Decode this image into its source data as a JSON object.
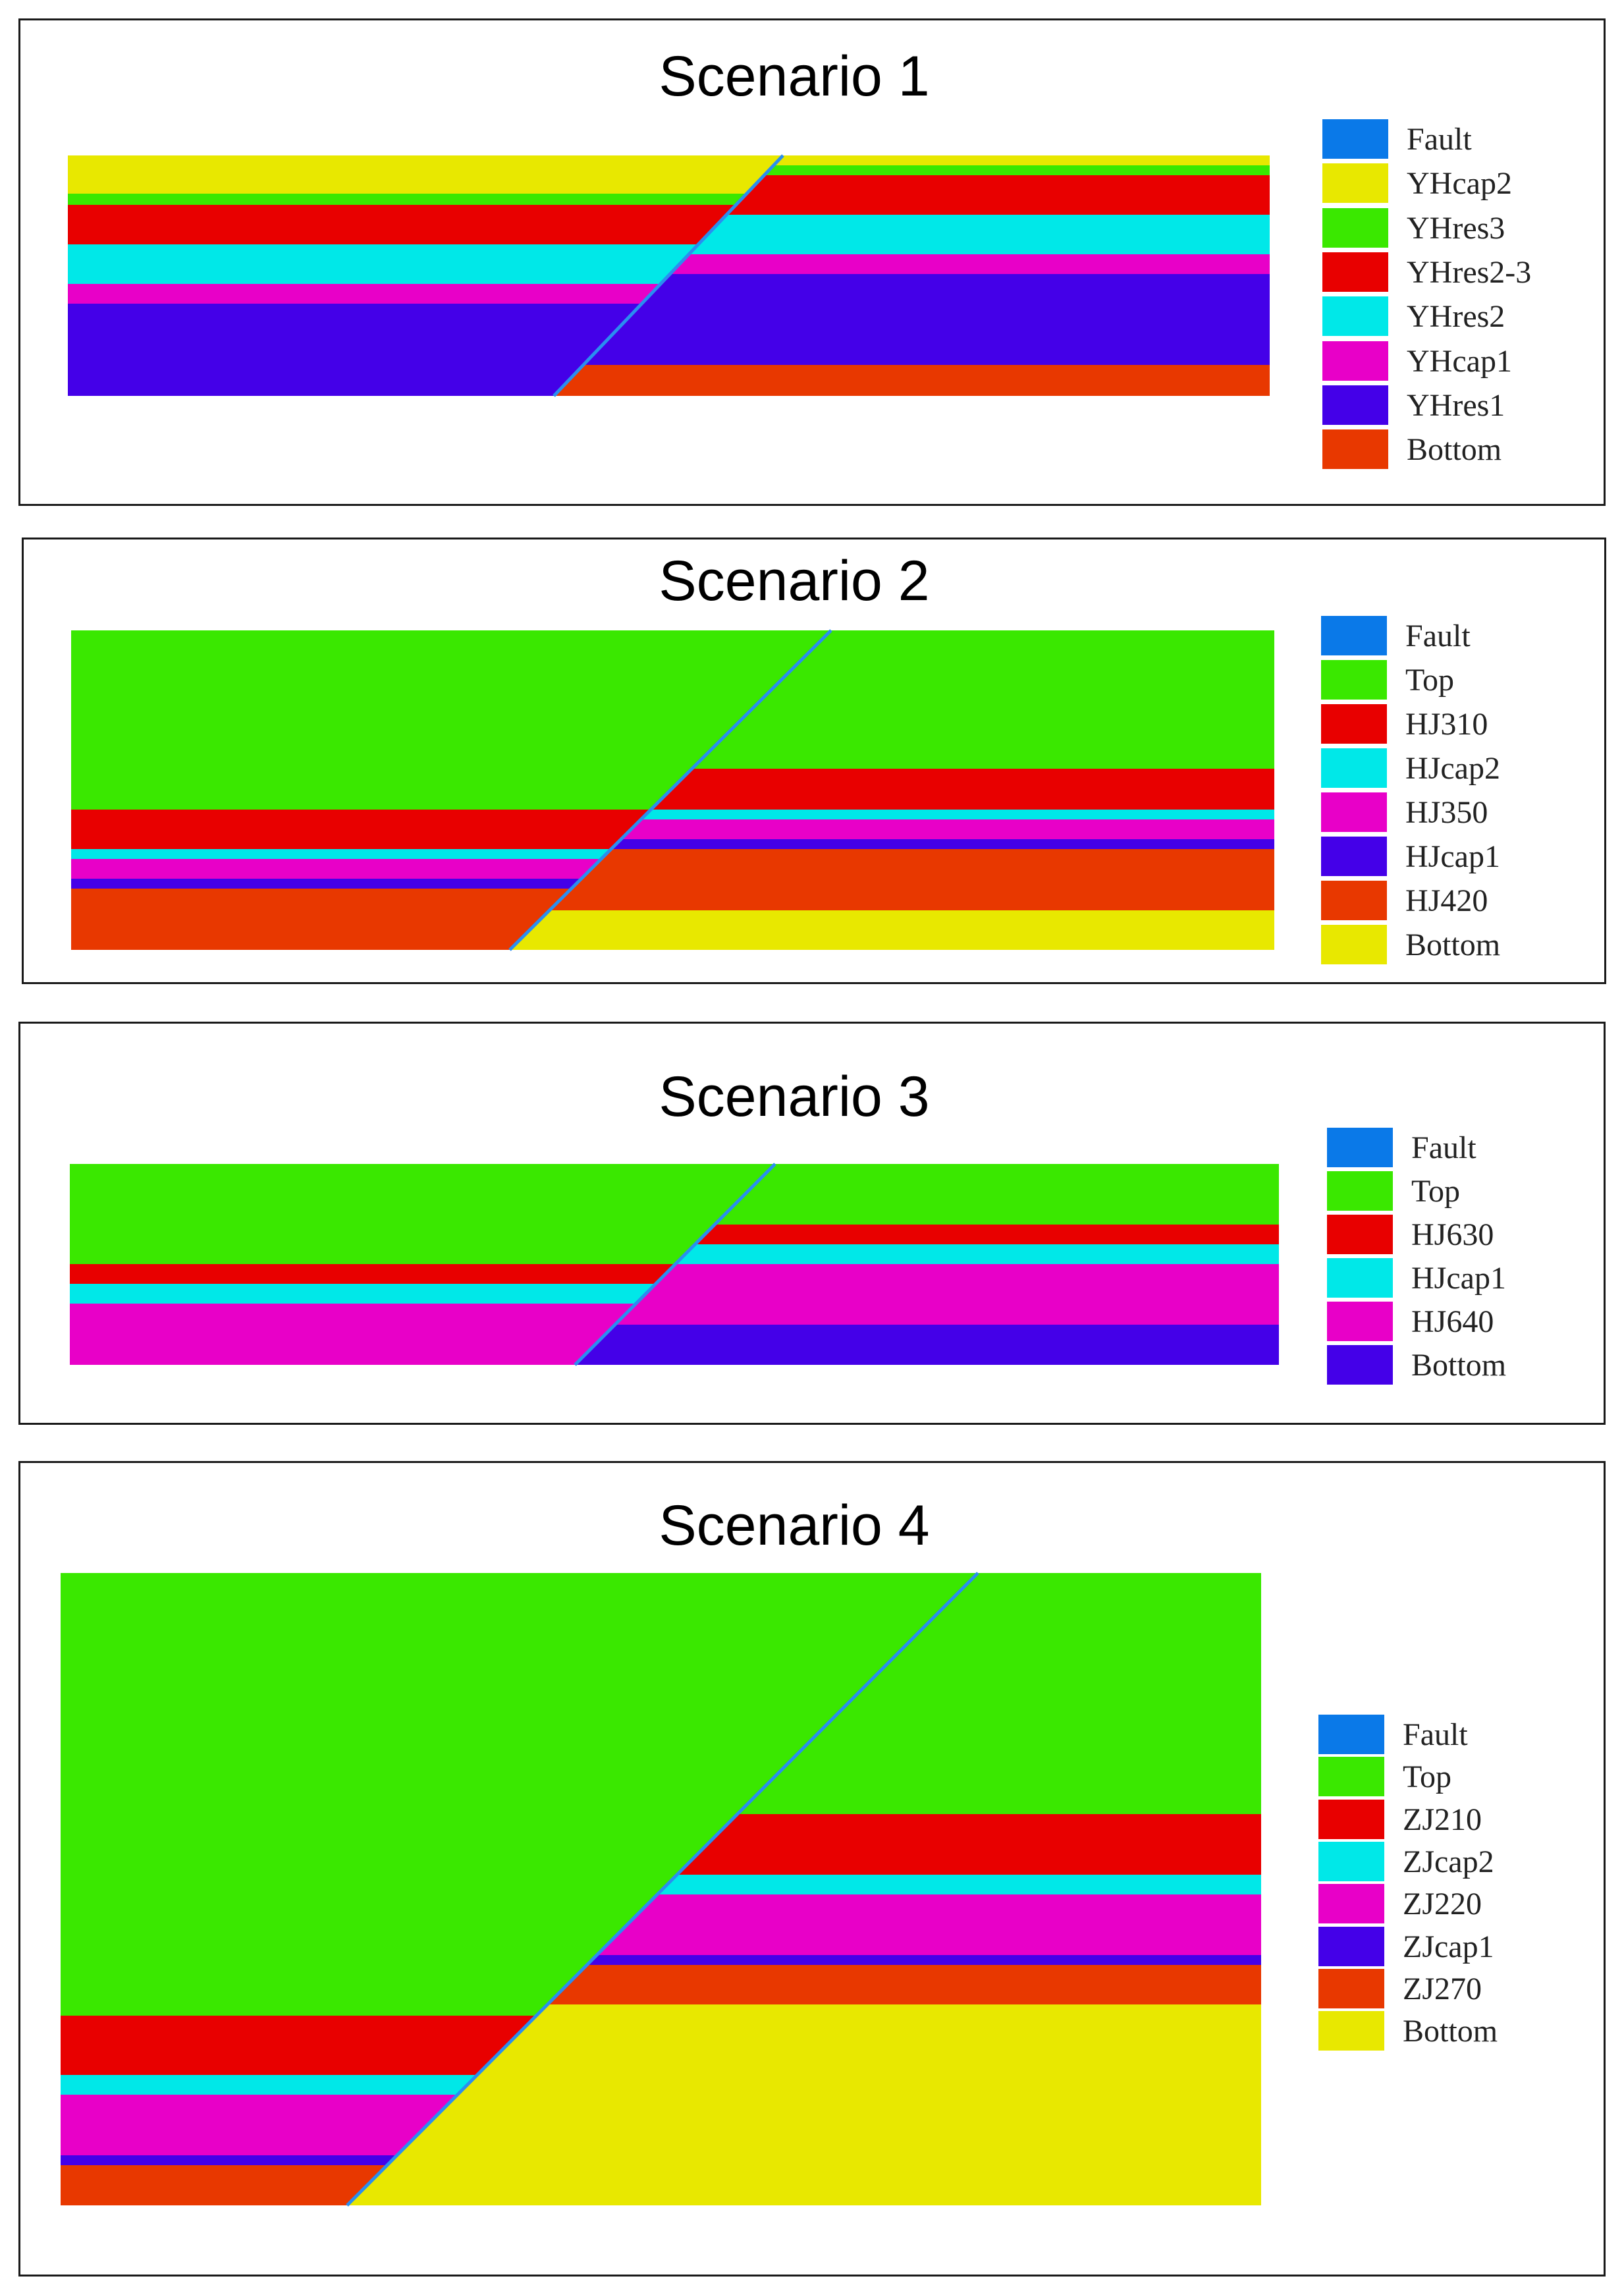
{
  "colors": {
    "fault": "#0a79e8",
    "fault_line": "#2a8ef0",
    "yellow": "#e8e800",
    "green": "#3ae800",
    "red": "#e80000",
    "cyan": "#00e8e8",
    "magenta": "#e800c8",
    "purple": "#4400e8",
    "orange": "#e83800"
  },
  "diagrams": [
    {
      "id": "scenario-1",
      "title": "Scenario 1",
      "legend": [
        {
          "label": "Fault",
          "color": "fault"
        },
        {
          "label": "YHcap2",
          "color": "yellow"
        },
        {
          "label": "YHres3",
          "color": "green"
        },
        {
          "label": "YHres2-3",
          "color": "red"
        },
        {
          "label": "YHres2",
          "color": "cyan"
        },
        {
          "label": "YHcap1",
          "color": "magenta"
        },
        {
          "label": "YHres1",
          "color": "purple"
        },
        {
          "label": "Bottom",
          "color": "orange"
        }
      ],
      "left_block": [
        {
          "layer": "YHcap2",
          "color": "yellow",
          "thickness": 58
        },
        {
          "layer": "YHres3",
          "color": "green",
          "thickness": 17
        },
        {
          "layer": "YHres2-3",
          "color": "red",
          "thickness": 60
        },
        {
          "layer": "YHres2",
          "color": "cyan",
          "thickness": 60
        },
        {
          "layer": "YHcap1",
          "color": "magenta",
          "thickness": 30
        },
        {
          "layer": "YHres1",
          "color": "purple",
          "thickness": 140
        }
      ],
      "right_block": [
        {
          "layer": "YHcap2",
          "color": "yellow",
          "thickness": 15
        },
        {
          "layer": "YHres3",
          "color": "green",
          "thickness": 15
        },
        {
          "layer": "YHres2-3",
          "color": "red",
          "thickness": 60
        },
        {
          "layer": "YHres2",
          "color": "cyan",
          "thickness": 60
        },
        {
          "layer": "YHcap1",
          "color": "magenta",
          "thickness": 30
        },
        {
          "layer": "YHres1",
          "color": "purple",
          "thickness": 138
        },
        {
          "layer": "Bottom",
          "color": "orange",
          "thickness": 47
        }
      ]
    },
    {
      "id": "scenario-2",
      "title": "Scenario 2",
      "legend": [
        {
          "label": "Fault",
          "color": "fault"
        },
        {
          "label": "Top",
          "color": "green"
        },
        {
          "label": "HJ310",
          "color": "red"
        },
        {
          "label": "HJcap2",
          "color": "cyan"
        },
        {
          "label": "HJ350",
          "color": "magenta"
        },
        {
          "label": "HJcap1",
          "color": "purple"
        },
        {
          "label": "HJ420",
          "color": "orange"
        },
        {
          "label": "Bottom",
          "color": "yellow"
        }
      ],
      "left_block": [
        {
          "layer": "Top",
          "color": "green",
          "thickness": 272
        },
        {
          "layer": "HJ310",
          "color": "red",
          "thickness": 60
        },
        {
          "layer": "HJcap2",
          "color": "cyan",
          "thickness": 15
        },
        {
          "layer": "HJ350",
          "color": "magenta",
          "thickness": 30
        },
        {
          "layer": "HJcap1",
          "color": "purple",
          "thickness": 15
        },
        {
          "layer": "HJ420",
          "color": "orange",
          "thickness": 93
        }
      ],
      "right_block": [
        {
          "layer": "Top",
          "color": "green",
          "thickness": 210
        },
        {
          "layer": "HJ310",
          "color": "red",
          "thickness": 62
        },
        {
          "layer": "HJcap2",
          "color": "cyan",
          "thickness": 15
        },
        {
          "layer": "HJ350",
          "color": "magenta",
          "thickness": 30
        },
        {
          "layer": "HJcap1",
          "color": "purple",
          "thickness": 15
        },
        {
          "layer": "HJ420",
          "color": "orange",
          "thickness": 93
        },
        {
          "layer": "Bottom",
          "color": "yellow",
          "thickness": 60
        }
      ]
    },
    {
      "id": "scenario-3",
      "title": "Scenario 3",
      "legend": [
        {
          "label": "Fault",
          "color": "fault"
        },
        {
          "label": "Top",
          "color": "green"
        },
        {
          "label": "HJ630",
          "color": "red"
        },
        {
          "label": "HJcap1",
          "color": "cyan"
        },
        {
          "label": "HJ640",
          "color": "magenta"
        },
        {
          "label": "Bottom",
          "color": "purple"
        }
      ],
      "left_block": [
        {
          "layer": "Top",
          "color": "green",
          "thickness": 152
        },
        {
          "layer": "HJ630",
          "color": "red",
          "thickness": 30
        },
        {
          "layer": "HJcap1",
          "color": "cyan",
          "thickness": 30
        },
        {
          "layer": "HJ640",
          "color": "magenta",
          "thickness": 93
        }
      ],
      "right_block": [
        {
          "layer": "Top",
          "color": "green",
          "thickness": 92
        },
        {
          "layer": "HJ630",
          "color": "red",
          "thickness": 30
        },
        {
          "layer": "HJcap1",
          "color": "cyan",
          "thickness": 30
        },
        {
          "layer": "HJ640",
          "color": "magenta",
          "thickness": 92
        },
        {
          "layer": "Bottom",
          "color": "purple",
          "thickness": 61
        }
      ]
    },
    {
      "id": "scenario-4",
      "title": "Scenario 4",
      "legend": [
        {
          "label": "Fault",
          "color": "fault"
        },
        {
          "label": "Top",
          "color": "green"
        },
        {
          "label": "ZJ210",
          "color": "red"
        },
        {
          "label": "ZJcap2",
          "color": "cyan"
        },
        {
          "label": "ZJ220",
          "color": "magenta"
        },
        {
          "label": "ZJcap1",
          "color": "purple"
        },
        {
          "label": "ZJ270",
          "color": "orange"
        },
        {
          "label": "Bottom",
          "color": "yellow"
        }
      ],
      "left_block": [
        {
          "layer": "Top",
          "color": "green",
          "thickness": 672
        },
        {
          "layer": "ZJ210",
          "color": "red",
          "thickness": 90
        },
        {
          "layer": "ZJcap2",
          "color": "cyan",
          "thickness": 30
        },
        {
          "layer": "ZJ220",
          "color": "magenta",
          "thickness": 92
        },
        {
          "layer": "ZJcap1",
          "color": "purple",
          "thickness": 15
        },
        {
          "layer": "ZJ270",
          "color": "orange",
          "thickness": 61
        }
      ],
      "right_block": [
        {
          "layer": "Top",
          "color": "green",
          "thickness": 366
        },
        {
          "layer": "ZJ210",
          "color": "red",
          "thickness": 92
        },
        {
          "layer": "ZJcap2",
          "color": "cyan",
          "thickness": 30
        },
        {
          "layer": "ZJ220",
          "color": "magenta",
          "thickness": 92
        },
        {
          "layer": "ZJcap1",
          "color": "purple",
          "thickness": 15
        },
        {
          "layer": "ZJ270",
          "color": "orange",
          "thickness": 60
        },
        {
          "layer": "Bottom",
          "color": "yellow",
          "thickness": 305
        }
      ]
    }
  ]
}
